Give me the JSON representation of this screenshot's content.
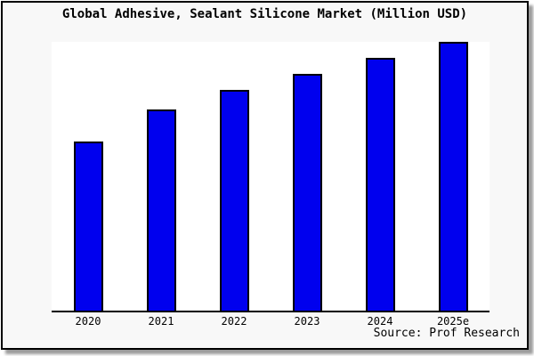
{
  "title": "Global Adhesive, Sealant Silicone Market (Million USD)",
  "source": "Source: Prof Research",
  "colors": {
    "bar_fill": "#0000ee",
    "bar_border": "#000000",
    "axis": "#000000",
    "figure_bg": "#f8f8f8",
    "plot_bg": "#ffffff"
  },
  "chart_data": {
    "type": "bar",
    "title": "Global Adhesive, Sealant Silicone Market (Million USD)",
    "categories": [
      "2020",
      "2021",
      "2022",
      "2023",
      "2024",
      "2025e"
    ],
    "values": [
      63,
      75,
      82,
      88,
      94,
      100
    ],
    "value_units": "relative index (no y-axis shown; values estimated from bar heights, max bar = 100)",
    "xlabel": "",
    "ylabel": "",
    "ylim": [
      0,
      100
    ],
    "grid": false,
    "legend": false,
    "annotations": [
      "Source: Prof Research"
    ]
  }
}
